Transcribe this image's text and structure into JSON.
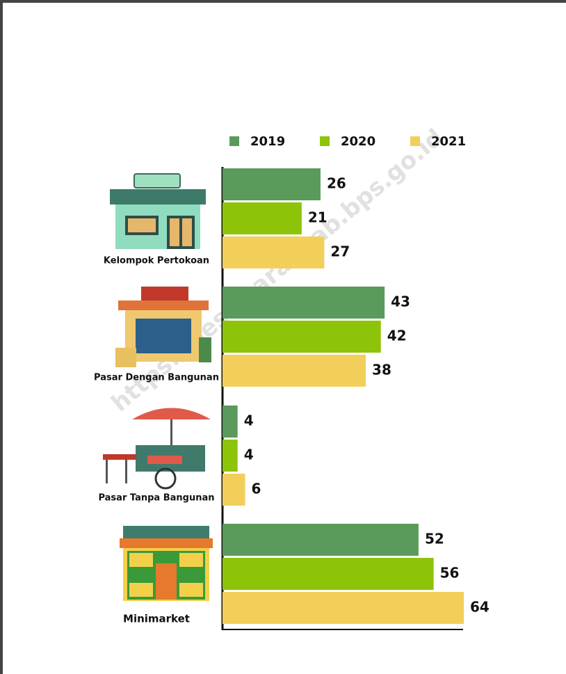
{
  "chart_data": {
    "type": "bar",
    "orientation": "horizontal",
    "watermark": "https://pesawarankab.bps.go.id",
    "categories": [
      "Kelompok Pertokoan",
      "Pasar Dengan Bangunan",
      "Pasar Tanpa Bangunan",
      "Minimarket"
    ],
    "series": [
      {
        "name": "2019",
        "color": "#5a9a5a",
        "values": [
          26,
          43,
          4,
          52
        ]
      },
      {
        "name": "2020",
        "color": "#8dc40a",
        "values": [
          21,
          42,
          4,
          56
        ]
      },
      {
        "name": "2021",
        "color": "#f2cf5b",
        "values": [
          27,
          38,
          6,
          64
        ]
      }
    ],
    "xlim": [
      0,
      64
    ],
    "legend": "top"
  }
}
